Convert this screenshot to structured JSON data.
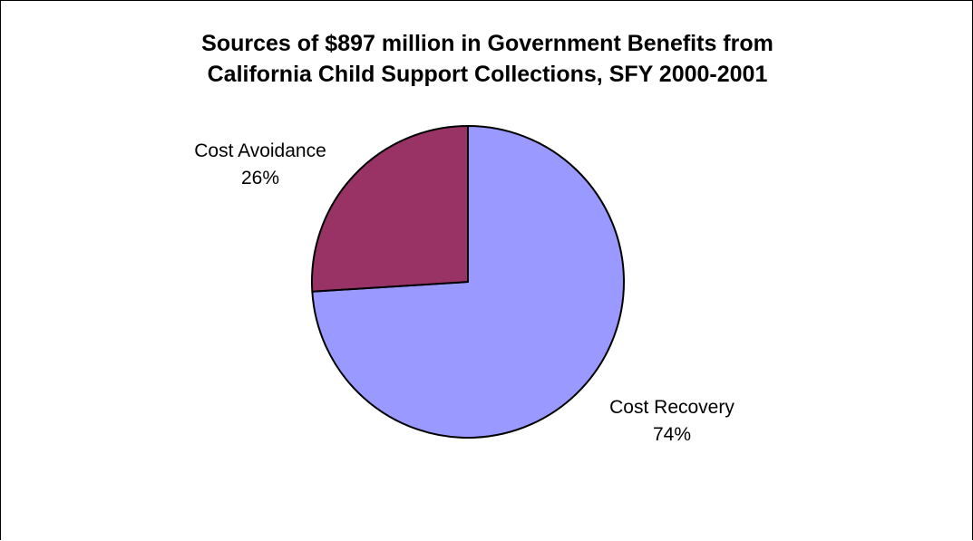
{
  "chart_data": {
    "type": "pie",
    "title_lines": [
      "Sources of $897 million in Government Benefits from",
      "California Child Support Collections, SFY 2000-2001"
    ],
    "slices": [
      {
        "name": "Cost Recovery",
        "value": 74,
        "percent_label": "74%",
        "color": "#9999ff"
      },
      {
        "name": "Cost Avoidance",
        "value": 26,
        "percent_label": "26%",
        "color": "#993366"
      }
    ],
    "legend": "none"
  }
}
